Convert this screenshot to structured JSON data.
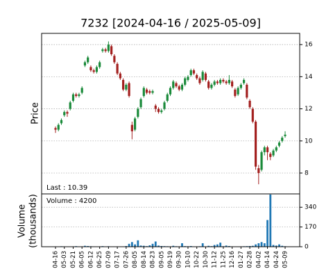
{
  "chart_data": {
    "type": "candlestick",
    "title": "7232   [2024-04-16 / 2025-05-09]",
    "ylabel": "Price",
    "volume_ylabel": [
      "Volume",
      "(thousands)"
    ],
    "annotations": [
      "Last : 10.39",
      "Volume : 4200"
    ],
    "categories": [
      "04-16",
      null,
      null,
      "05-03",
      null,
      null,
      "05-21",
      null,
      null,
      "06-05",
      null,
      null,
      "06-12",
      null,
      null,
      "06-25",
      null,
      null,
      "07-09",
      null,
      null,
      "07-17",
      null,
      null,
      "07-26",
      null,
      null,
      "08-05",
      null,
      null,
      "08-14",
      null,
      null,
      "08-23",
      null,
      null,
      "09-05",
      null,
      null,
      "09-19",
      null,
      null,
      "09-30",
      null,
      null,
      "10-10",
      null,
      null,
      "10-22",
      null,
      null,
      "10-30",
      null,
      null,
      "11-12",
      null,
      null,
      "11-25",
      null,
      null,
      "12-16",
      null,
      null,
      "01-27",
      null,
      null,
      "02-28",
      null,
      null,
      "04-02",
      null,
      null,
      "04-14",
      null,
      null,
      "04-24",
      null,
      null,
      "05-09"
    ],
    "open": [
      10.8,
      10.7,
      11.1,
      11.6,
      11.8,
      12.0,
      12.5,
      12.9,
      12.8,
      13.0,
      14.7,
      14.9,
      14.6,
      14.4,
      14.3,
      14.6,
      15.6,
      15.7,
      15.6,
      15.9,
      15.3,
      14.8,
      14.2,
      13.8,
      13.2,
      13.6,
      11.0,
      10.7,
      11.5,
      12.1,
      12.8,
      13.2,
      13.1,
      13.0,
      12.2,
      12.0,
      11.8,
      12.0,
      12.5,
      12.9,
      13.3,
      13.6,
      13.4,
      13.2,
      13.5,
      13.8,
      14.1,
      14.4,
      14.1,
      13.9,
      13.8,
      14.2,
      13.7,
      13.3,
      13.5,
      13.7,
      13.6,
      13.8,
      13.7,
      13.6,
      13.7,
      13.2,
      12.9,
      13.3,
      13.6,
      13.5,
      12.5,
      12.0,
      11.2,
      8.3,
      8.2,
      9.3,
      9.6,
      9.2,
      9.1,
      9.4,
      9.7,
      10.0,
      10.3
    ],
    "high": [
      10.9,
      11.1,
      11.4,
      11.9,
      11.9,
      12.5,
      13.0,
      13.0,
      13.0,
      13.4,
      15.0,
      15.3,
      14.7,
      14.5,
      14.7,
      15.0,
      15.8,
      15.8,
      16.2,
      16.0,
      15.4,
      14.9,
      14.3,
      13.9,
      13.6,
      13.7,
      11.2,
      11.5,
      12.1,
      12.7,
      13.4,
      13.3,
      13.2,
      13.2,
      12.3,
      12.1,
      12.0,
      12.5,
      13.0,
      13.4,
      13.8,
      13.7,
      13.5,
      13.6,
      14.0,
      14.1,
      14.5,
      14.5,
      14.2,
      14.0,
      14.4,
      14.3,
      13.8,
      13.6,
      13.8,
      13.8,
      13.9,
      13.9,
      13.8,
      14.1,
      13.8,
      13.3,
      13.4,
      13.6,
      13.9,
      13.6,
      12.6,
      12.1,
      11.3,
      8.5,
      9.4,
      9.7,
      9.7,
      9.3,
      9.5,
      9.7,
      10.0,
      10.3,
      10.6
    ],
    "low": [
      10.5,
      10.6,
      11.0,
      11.5,
      11.5,
      11.9,
      12.4,
      12.7,
      12.7,
      12.9,
      14.6,
      14.8,
      14.3,
      14.2,
      14.2,
      14.5,
      15.5,
      15.5,
      15.5,
      15.3,
      14.8,
      14.1,
      13.8,
      13.1,
      13.1,
      12.7,
      10.1,
      10.6,
      11.4,
      12.0,
      12.7,
      12.9,
      12.9,
      12.9,
      11.8,
      11.7,
      11.7,
      11.9,
      12.4,
      12.8,
      13.2,
      13.3,
      13.1,
      13.1,
      13.4,
      13.7,
      14.0,
      14.1,
      13.8,
      13.5,
      13.7,
      13.7,
      13.2,
      13.2,
      13.4,
      13.5,
      13.5,
      13.6,
      13.5,
      13.5,
      13.3,
      12.7,
      12.8,
      13.2,
      13.5,
      12.6,
      12.0,
      11.1,
      8.2,
      7.3,
      8.1,
      9.1,
      8.8,
      8.8,
      9.0,
      9.3,
      9.6,
      9.9,
      10.2
    ],
    "close": [
      10.7,
      11.0,
      11.3,
      11.8,
      11.7,
      12.4,
      12.9,
      12.8,
      12.9,
      13.3,
      14.9,
      15.2,
      14.4,
      14.3,
      14.6,
      14.9,
      15.7,
      15.6,
      16.0,
      15.4,
      14.9,
      14.2,
      13.9,
      13.2,
      13.5,
      12.8,
      10.6,
      11.4,
      12.0,
      12.6,
      13.3,
      13.0,
      13.0,
      13.1,
      12.0,
      11.8,
      11.9,
      12.4,
      12.9,
      13.3,
      13.7,
      13.4,
      13.2,
      13.5,
      13.9,
      14.0,
      14.4,
      14.2,
      13.9,
      13.6,
      14.3,
      13.8,
      13.3,
      13.5,
      13.7,
      13.6,
      13.8,
      13.7,
      13.6,
      13.8,
      13.4,
      12.8,
      13.3,
      13.5,
      13.8,
      12.7,
      12.1,
      11.2,
      8.4,
      8.0,
      9.3,
      9.6,
      9.3,
      9.0,
      9.4,
      9.6,
      9.9,
      10.2,
      10.39
    ],
    "volume": [
      3,
      2,
      4,
      2,
      3,
      2,
      2,
      5,
      2,
      3,
      8,
      6,
      4,
      3,
      2,
      3,
      5,
      3,
      4,
      2,
      3,
      2,
      2,
      3,
      6,
      25,
      40,
      20,
      55,
      10,
      8,
      5,
      12,
      25,
      45,
      10,
      6,
      5,
      4,
      3,
      8,
      4,
      3,
      30,
      5,
      4,
      6,
      3,
      2,
      4,
      30,
      3,
      8,
      5,
      15,
      20,
      35,
      4,
      10,
      6,
      3,
      2,
      2,
      3,
      4,
      5,
      6,
      8,
      20,
      30,
      40,
      30,
      230,
      450,
      15,
      10,
      20,
      8,
      4.2
    ],
    "ylim": [
      6.7,
      16.7
    ],
    "yticks": [
      8,
      10,
      12,
      14,
      16
    ],
    "volume_ylim": [
      0,
      455
    ],
    "volume_yticks": [
      0,
      170,
      340
    ],
    "up_color": "#1a8a3a",
    "down_color": "#a3201f",
    "volume_color": "#1f77b4",
    "grid": true
  }
}
